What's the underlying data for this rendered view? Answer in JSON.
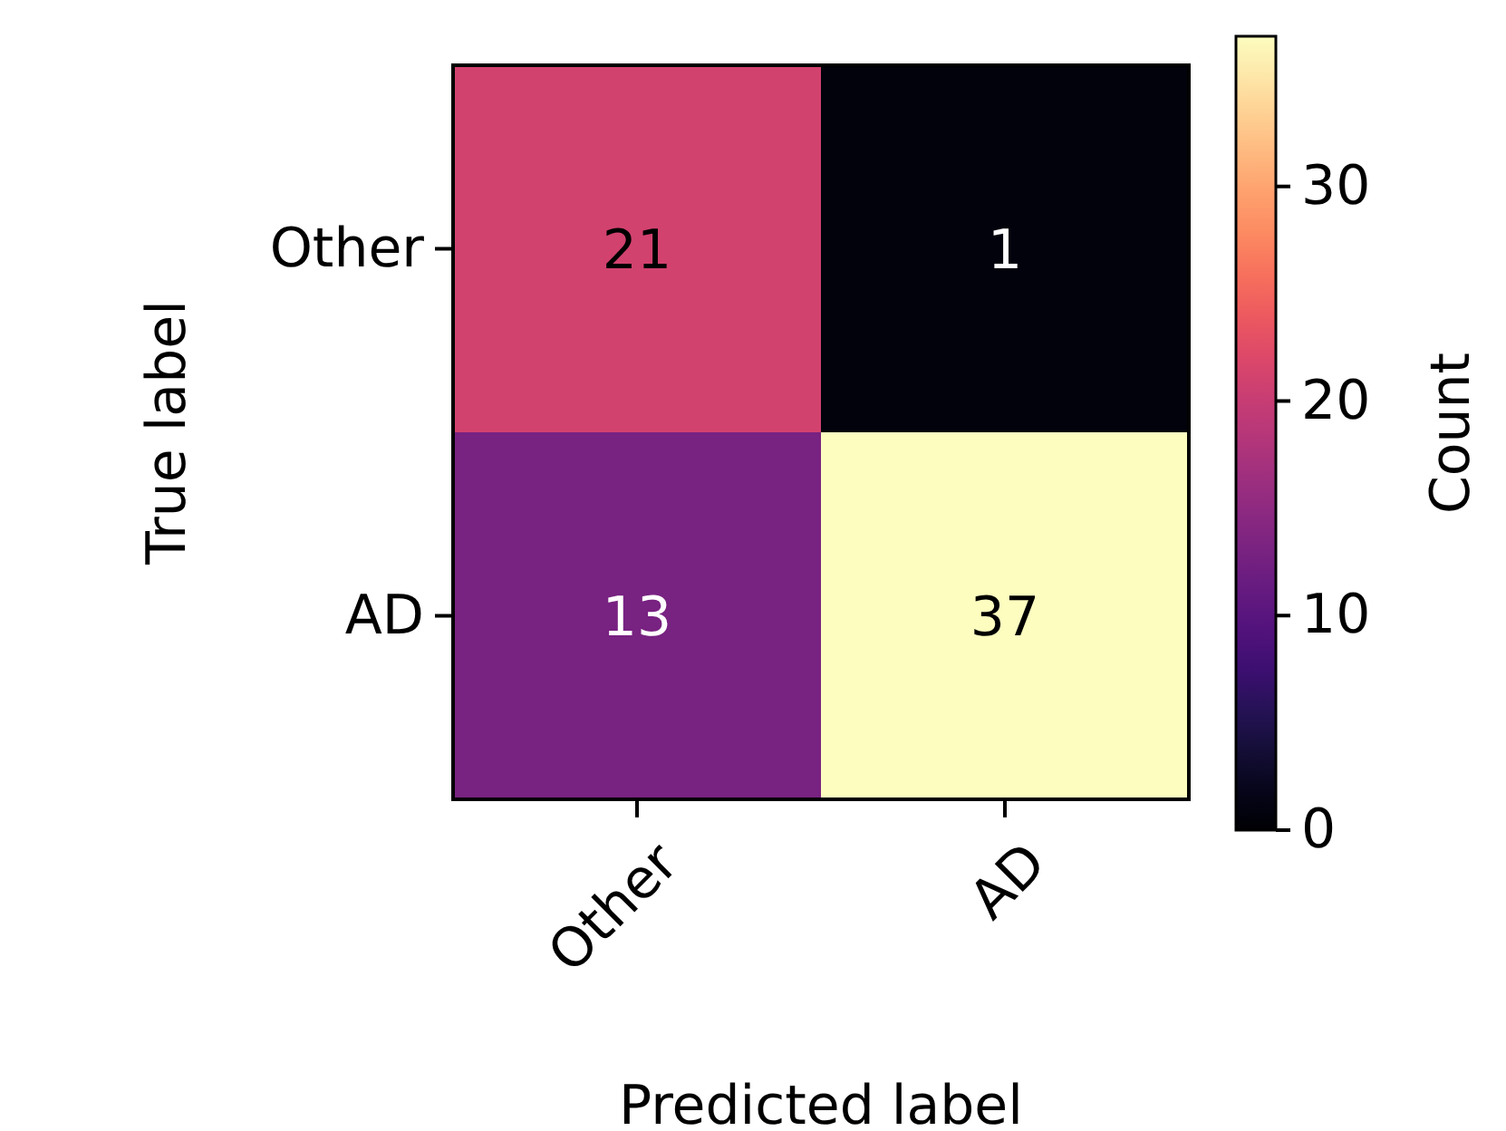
{
  "chart_data": {
    "type": "heatmap",
    "xlabel": "Predicted label",
    "ylabel": "True label",
    "clabel": "Count",
    "categories": [
      "Other",
      "AD"
    ],
    "y_categories": [
      "Other",
      "AD"
    ],
    "cells": [
      [
        21,
        1
      ],
      [
        13,
        37
      ]
    ],
    "clim": [
      0,
      37
    ],
    "cticks": [
      0,
      10,
      20,
      30
    ],
    "data_labels": true
  }
}
